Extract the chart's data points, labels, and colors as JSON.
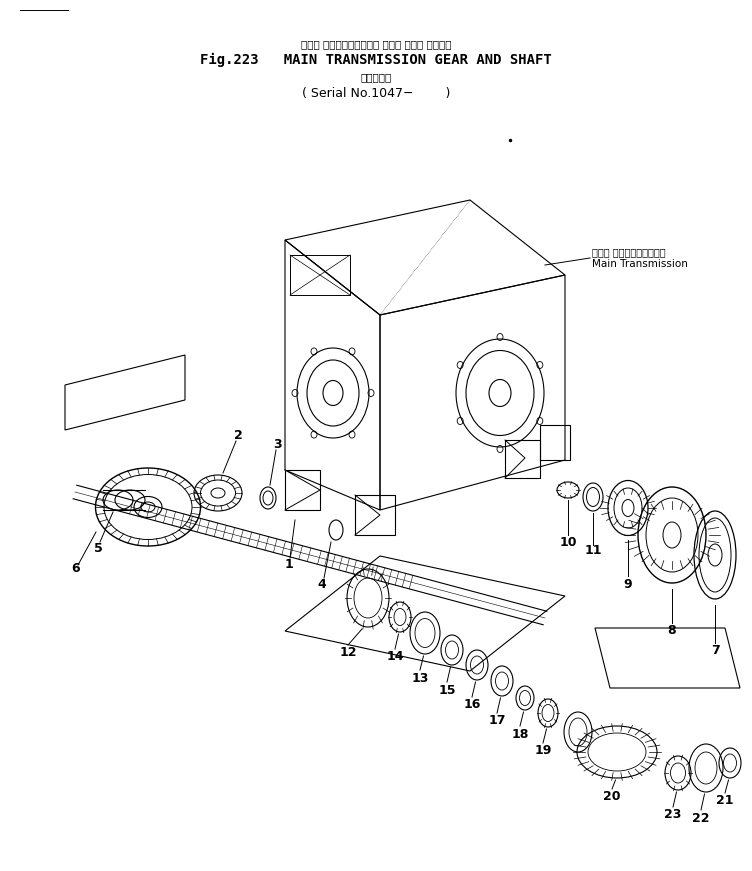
{
  "title_japanese": "メイン トランスミッション ギヤー および シャフト",
  "title_english": "Fig.223   MAIN TRANSMISSION GEAR AND SHAFT",
  "title_serial_japanese": "（適用号機",
  "title_serial": "( Serial No.1047−        )",
  "label_main_trans_japanese": "メイン トランスミッション",
  "label_main_trans_english": "Main Transmission",
  "background_color": "#ffffff",
  "line_color": "#000000",
  "figsize": [
    7.52,
    8.71
  ],
  "dpi": 100
}
